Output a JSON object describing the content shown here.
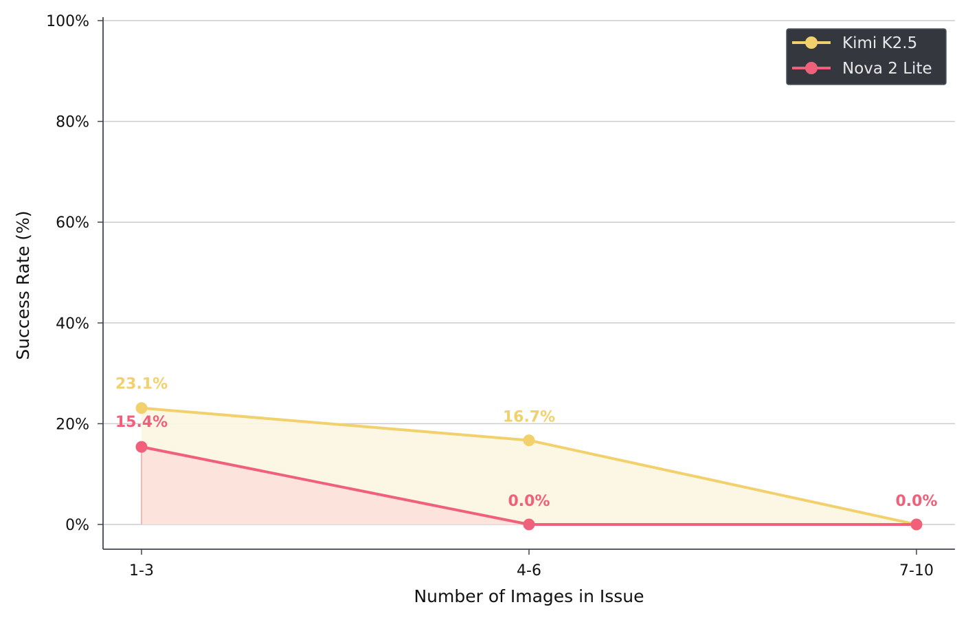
{
  "chart_data": {
    "type": "line",
    "title": "",
    "xlabel": "Number of Images in Issue",
    "ylabel": "Success Rate (%)",
    "categories": [
      "1-3",
      "4-6",
      "7-10"
    ],
    "ylim": [
      -5,
      100
    ],
    "yticks": [
      0,
      20,
      40,
      60,
      80,
      100
    ],
    "ytick_labels": [
      "0%",
      "20%",
      "40%",
      "60%",
      "80%",
      "100%"
    ],
    "grid": "horizontal",
    "area_fill": true,
    "legend_position": "top-right",
    "series": [
      {
        "name": "Kimi K2.5",
        "color": "#f2d06b",
        "values": [
          23.1,
          16.7,
          0.0
        ],
        "labels": [
          "23.1%",
          "16.7%",
          ""
        ]
      },
      {
        "name": "Nova 2 Lite",
        "color": "#f0607a",
        "values": [
          15.4,
          0.0,
          0.0
        ],
        "labels": [
          "15.4%",
          "0.0%",
          "0.0%"
        ]
      }
    ]
  }
}
